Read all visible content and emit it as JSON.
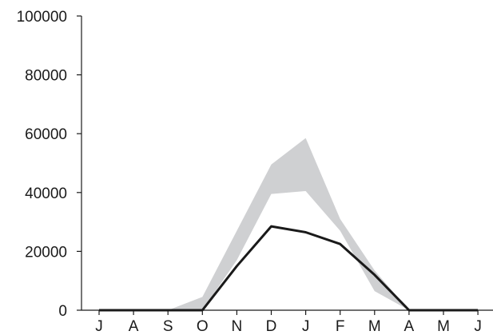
{
  "chart_data": {
    "type": "area",
    "title": "",
    "xlabel": "",
    "ylabel": "",
    "categories": [
      "J",
      "A",
      "S",
      "O",
      "N",
      "D",
      "J",
      "F",
      "M",
      "A",
      "M",
      "J"
    ],
    "ylim": [
      0,
      100000
    ],
    "yticks": [
      0,
      20000,
      40000,
      60000,
      80000,
      100000
    ],
    "ytick_labels": [
      "0",
      "20000",
      "40000",
      "60000",
      "80000",
      "100000"
    ],
    "grid": false,
    "legend": "none",
    "series": [
      {
        "kind": "line",
        "color": "#1a1a1a",
        "values": [
          0,
          0,
          0,
          0,
          15000,
          28500,
          26500,
          22500,
          12000,
          0,
          0,
          0
        ]
      },
      {
        "kind": "band",
        "color": "#cfd0d2",
        "lower": [
          0,
          0,
          0,
          0,
          17000,
          39500,
          40500,
          27000,
          6500,
          0,
          0,
          0
        ],
        "upper": [
          0,
          0,
          0,
          4500,
          27000,
          49500,
          58500,
          31000,
          13500,
          0,
          0,
          0
        ]
      }
    ]
  }
}
